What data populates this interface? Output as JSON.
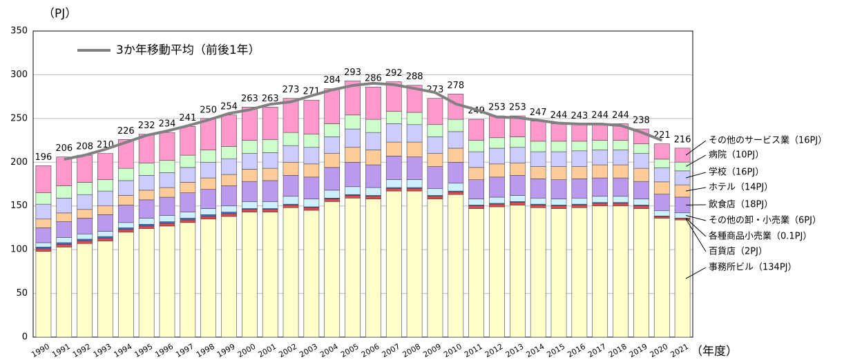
{
  "chart_data": {
    "type": "stacked-bar",
    "y_unit": "（PJ）",
    "x_label": "（年度）",
    "categories": [
      "1990",
      "1991",
      "1992",
      "1993",
      "1994",
      "1995",
      "1996",
      "1997",
      "1998",
      "1999",
      "2000",
      "2001",
      "2002",
      "2003",
      "2004",
      "2005",
      "2006",
      "2007",
      "2008",
      "2009",
      "2010",
      "2011",
      "2012",
      "2013",
      "2014",
      "2015",
      "2016",
      "2017",
      "2018",
      "2019",
      "2020",
      "2021"
    ],
    "ylim": [
      0,
      350
    ],
    "yticks": [
      0,
      50,
      100,
      150,
      200,
      250,
      300,
      350
    ],
    "grid": true,
    "series": [
      {
        "name": "事務所ビル（134PJ）",
        "color": "#ffffcc",
        "values": [
          98,
          103,
          107,
          110,
          120,
          124,
          127,
          131,
          135,
          138,
          143,
          143,
          148,
          145,
          155,
          159,
          158,
          167,
          167,
          158,
          163,
          147,
          149,
          151,
          148,
          147,
          148,
          150,
          150,
          147,
          136,
          134
        ]
      },
      {
        "name": "百貨店（2PJ）",
        "color": "#e8474a",
        "values": [
          3,
          3,
          3,
          3,
          3,
          3,
          3,
          3,
          3,
          3,
          3,
          3,
          3,
          3,
          3,
          3,
          3,
          3,
          3,
          3,
          3,
          3,
          3,
          3,
          3,
          3,
          3,
          3,
          3,
          3,
          2,
          2
        ]
      },
      {
        "name": "各種商品小売業（0.1PJ）",
        "color": "#3a6fd0",
        "values": [
          2,
          2,
          2,
          2,
          2,
          2,
          2,
          2,
          2,
          2,
          1,
          1,
          1,
          1,
          1,
          1,
          1,
          1,
          1,
          1,
          1,
          1,
          1,
          1,
          1,
          1,
          1,
          1,
          1,
          1,
          0.5,
          0.1
        ]
      },
      {
        "name": "その他の卸・小売業（6PJ）",
        "color": "#ccf0ff",
        "values": [
          5,
          6,
          6,
          6,
          6,
          7,
          7,
          7,
          7,
          7,
          8,
          8,
          9,
          9,
          9,
          9,
          9,
          9,
          9,
          8,
          9,
          7,
          7,
          7,
          7,
          7,
          7,
          7,
          7,
          7,
          6,
          6
        ]
      },
      {
        "name": "飲食店（18PJ）",
        "color": "#bb99ee",
        "values": [
          17,
          18,
          18,
          19,
          20,
          21,
          21,
          22,
          22,
          23,
          23,
          24,
          24,
          25,
          26,
          28,
          26,
          27,
          26,
          25,
          24,
          22,
          23,
          23,
          22,
          22,
          22,
          21,
          21,
          20,
          19,
          18
        ]
      },
      {
        "name": "ホテル（14PJ）",
        "color": "#ffcc99",
        "values": [
          10,
          10,
          10,
          10,
          11,
          11,
          11,
          12,
          13,
          13,
          14,
          14,
          15,
          15,
          16,
          17,
          17,
          16,
          17,
          15,
          16,
          14,
          15,
          14,
          14,
          15,
          14,
          15,
          15,
          15,
          14,
          14
        ]
      },
      {
        "name": "学校（16PJ）",
        "color": "#ccccff",
        "values": [
          17,
          17,
          17,
          17,
          17,
          17,
          17,
          17,
          18,
          18,
          18,
          18,
          19,
          19,
          19,
          21,
          20,
          21,
          20,
          19,
          19,
          18,
          18,
          18,
          17,
          17,
          18,
          17,
          17,
          17,
          16,
          16
        ]
      },
      {
        "name": "病院（10PJ）",
        "color": "#ccffcc",
        "values": [
          13,
          14,
          14,
          13,
          14,
          14,
          14,
          14,
          14,
          14,
          15,
          15,
          15,
          15,
          15,
          16,
          15,
          14,
          14,
          14,
          14,
          13,
          12,
          12,
          12,
          12,
          11,
          11,
          11,
          11,
          10,
          10
        ]
      },
      {
        "name": "その他のサービス業（16PJ）",
        "color": "#ff99cc",
        "values": [
          31,
          33,
          31,
          30,
          33,
          33,
          32,
          33,
          36,
          36,
          38,
          37,
          39,
          39,
          40,
          39,
          37,
          34,
          31,
          30,
          29,
          24,
          25,
          24,
          23,
          20,
          19,
          19,
          19,
          17,
          17.5,
          16
        ]
      }
    ],
    "totals": [
      196,
      206,
      208,
      210,
      226,
      232,
      234,
      241,
      250,
      254,
      263,
      263,
      273,
      271,
      284,
      293,
      286,
      292,
      288,
      273,
      278,
      249,
      253,
      253,
      247,
      244,
      243,
      244,
      244,
      238,
      221,
      216
    ],
    "moving_average": {
      "name": "3か年移動平均（前後1年）",
      "color": "#808080",
      "values": [
        null,
        203.3,
        208,
        214.7,
        222.7,
        230.7,
        235.7,
        241.7,
        248.3,
        255.7,
        260,
        266.3,
        269,
        276,
        282.7,
        287.7,
        290.3,
        288.7,
        284.3,
        279.7,
        266.7,
        260,
        251.7,
        251,
        248,
        244.7,
        243.7,
        243.7,
        242,
        234.3,
        225,
        null
      ]
    }
  }
}
